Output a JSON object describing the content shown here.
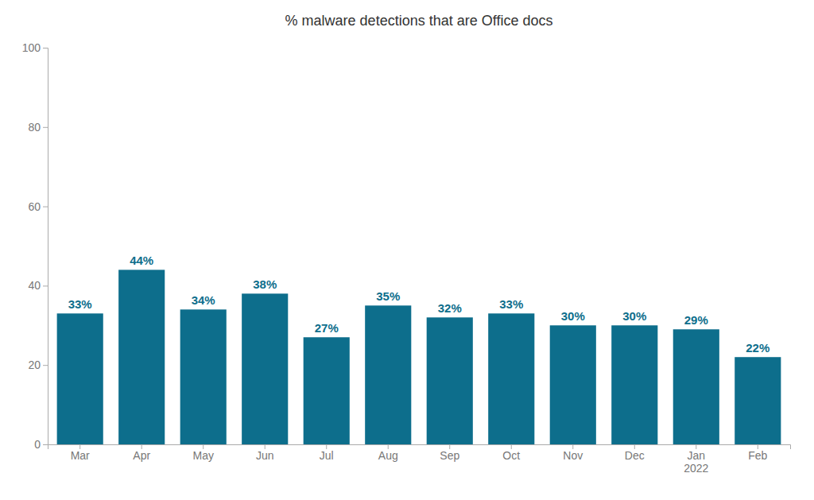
{
  "chart_data": {
    "type": "bar",
    "title": "% malware detections that are Office docs",
    "categories": [
      "Mar",
      "Apr",
      "May",
      "Jun",
      "Jul",
      "Aug",
      "Sep",
      "Oct",
      "Nov",
      "Dec",
      "Jan\n2022",
      "Feb"
    ],
    "values": [
      33,
      44,
      34,
      38,
      27,
      35,
      32,
      33,
      30,
      30,
      29,
      22
    ],
    "value_labels": [
      "33%",
      "44%",
      "34%",
      "38%",
      "27%",
      "35%",
      "32%",
      "33%",
      "30%",
      "30%",
      "29%",
      "22%"
    ],
    "data_labels": true,
    "color": "#0d6e8c",
    "ylim": [
      0,
      100
    ],
    "yticks": [
      0,
      20,
      40,
      60,
      80,
      100
    ],
    "grid": false
  }
}
